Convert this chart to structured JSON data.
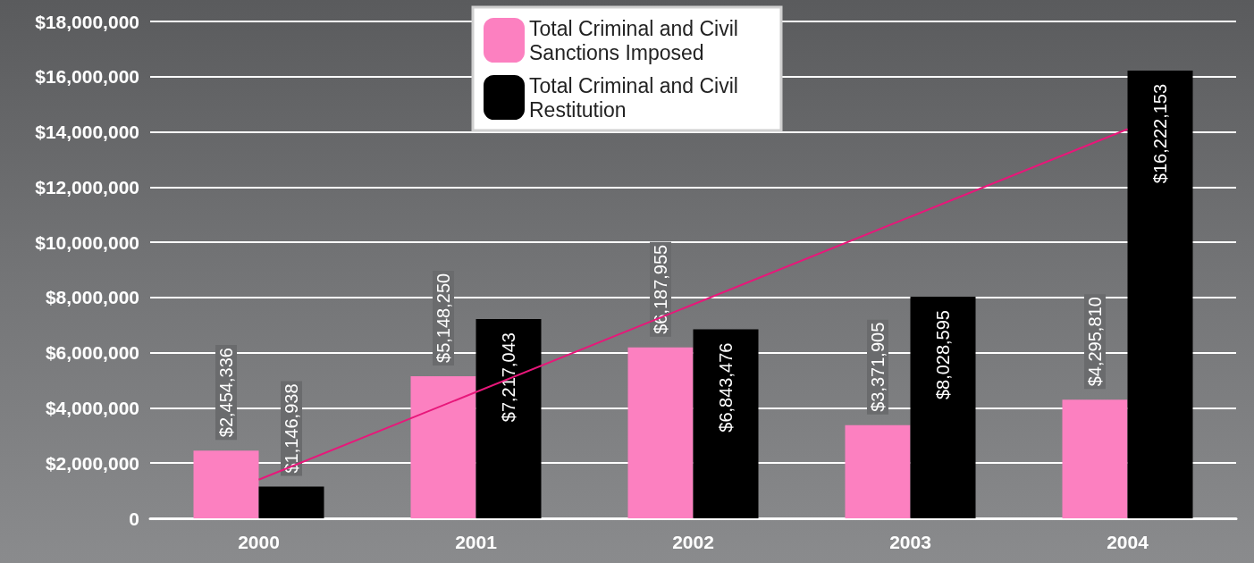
{
  "chart_data": {
    "type": "bar",
    "categories": [
      "2000",
      "2001",
      "2002",
      "2003",
      "2004"
    ],
    "series": [
      {
        "name": "Total Criminal and Civil Sanctions Imposed",
        "color": "#fc80c0",
        "values": [
          2454336,
          5148250,
          6187955,
          3371905,
          4295810
        ],
        "value_labels": [
          "$2,454,336",
          "$5,148,250",
          "$6,187,955",
          "$3,371,905",
          "$4,295,810"
        ]
      },
      {
        "name": "Total Criminal and Civil Restitution",
        "color": "#000000",
        "values": [
          1146938,
          7217043,
          6843476,
          8028595,
          16222153
        ],
        "value_labels": [
          "$1,146,938",
          "$7,217,043",
          "$6,843,476",
          "$8,028,595",
          "$16,222,153"
        ]
      },
      {
        "type": "line",
        "color": "#e8177a",
        "values": [
          1400000,
          null,
          null,
          null,
          14100000
        ]
      }
    ],
    "ylim": [
      0,
      18000000
    ],
    "yticks": [
      {
        "value": 0,
        "label": "0"
      },
      {
        "value": 2000000,
        "label": "$2,000,000"
      },
      {
        "value": 4000000,
        "label": "$4,000,000"
      },
      {
        "value": 6000000,
        "label": "$6,000,000"
      },
      {
        "value": 8000000,
        "label": "$8,000,000"
      },
      {
        "value": 10000000,
        "label": "$10,000,000"
      },
      {
        "value": 12000000,
        "label": "$12,000,000"
      },
      {
        "value": 14000000,
        "label": "$14,000,000"
      },
      {
        "value": 16000000,
        "label": "$16,000,000"
      },
      {
        "value": 18000000,
        "label": "$18,000,000"
      }
    ],
    "grid": "y",
    "legend": "top",
    "marker": "none"
  }
}
